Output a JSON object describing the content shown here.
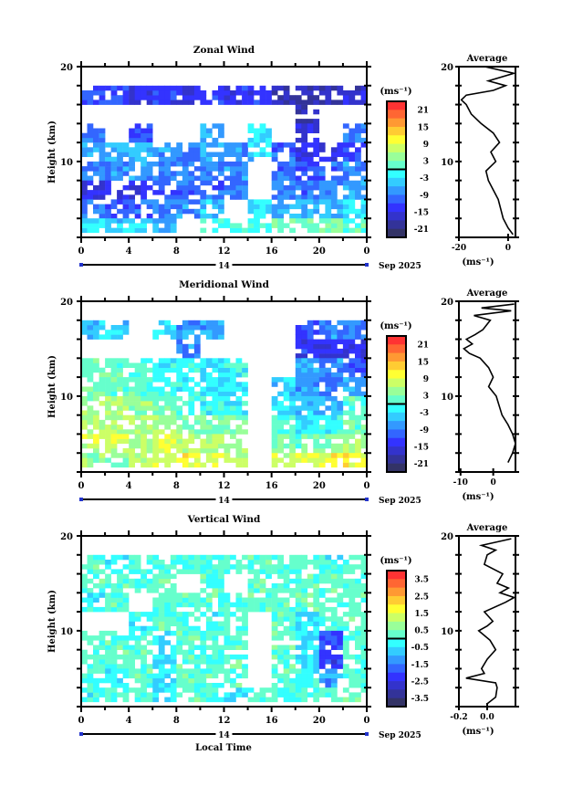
{
  "figure": {
    "day_label": "14",
    "month_label": "Sep 2025",
    "x_label": "Local Time"
  },
  "chart_data": [
    {
      "type": "heatmap",
      "title": "Zonal Wind",
      "ylabel": "Height (km)",
      "xlim": [
        0,
        24
      ],
      "ylim": [
        2,
        20
      ],
      "x_ticks": [
        "0",
        "4",
        "8",
        "12",
        "16",
        "20",
        "0"
      ],
      "y_ticks": [
        "10",
        "20"
      ],
      "time_step_hours": 2,
      "height_bins_lower_km_top_down": [
        18,
        16,
        14,
        12,
        10,
        8,
        6,
        4,
        2
      ],
      "values": [
        [
          null,
          null,
          null,
          null,
          null,
          null,
          null,
          null,
          null,
          null,
          null,
          null
        ],
        [
          -12,
          -12,
          -14,
          -13,
          -15,
          -13,
          -14,
          -14,
          -17,
          -18,
          -18,
          -16
        ],
        [
          null,
          null,
          null,
          null,
          null,
          null,
          null,
          null,
          null,
          -18,
          null,
          null
        ],
        [
          -9,
          null,
          -12,
          null,
          null,
          -6,
          null,
          -3,
          null,
          -15,
          null,
          -9
        ],
        [
          -7,
          -6,
          -5,
          -8,
          -9,
          -6,
          -7,
          -4,
          -10,
          -14,
          -15,
          -12
        ],
        [
          -9,
          -8,
          -7,
          -9,
          -9,
          -8,
          -8,
          null,
          -10,
          -12,
          -11,
          -8
        ],
        [
          -15,
          -16,
          -14,
          -12,
          -11,
          -10,
          -9,
          null,
          -9,
          -10,
          -8,
          -6
        ],
        [
          -10,
          -11,
          -10,
          -9,
          -8,
          -5,
          null,
          -3,
          -7,
          -6,
          -5,
          -4
        ],
        [
          -3,
          -4,
          -3,
          -5,
          null,
          -1,
          0,
          -1,
          2,
          3,
          3,
          1
        ]
      ],
      "colorbar": {
        "units": "(ms⁻¹)",
        "range": [
          -24,
          24
        ],
        "labels": [
          "21",
          "15",
          "9",
          "3",
          "-3",
          "-9",
          "-15",
          "-21"
        ]
      },
      "average": {
        "title": "Average",
        "xlabel": "(ms⁻¹)",
        "xlim": [
          -20,
          3
        ],
        "x_ticks": [
          {
            "value": -20,
            "label": "-20"
          },
          {
            "value": 0,
            "label": "0"
          }
        ],
        "y_ticks": [
          "10",
          "20"
        ],
        "heights": [
          20,
          19.3,
          18.5,
          18,
          17.5,
          17,
          16.5,
          16,
          15,
          14,
          13,
          12,
          11,
          10,
          9,
          8,
          7,
          6,
          5,
          4,
          3,
          2.3
        ],
        "values": [
          -9.5,
          2.4,
          -8,
          -1,
          -6,
          -17,
          -19,
          -17,
          -15,
          -11,
          -6,
          -3.5,
          -7,
          -5,
          -9,
          -8,
          -6,
          -4,
          -3,
          -2,
          0,
          2
        ]
      }
    },
    {
      "type": "heatmap",
      "title": "Meridional Wind",
      "ylabel": "Height (km)",
      "xlim": [
        0,
        24
      ],
      "ylim": [
        2,
        20
      ],
      "x_ticks": [
        "0",
        "4",
        "8",
        "12",
        "16",
        "20",
        "0"
      ],
      "y_ticks": [
        "10",
        "20"
      ],
      "time_step_hours": 2,
      "height_bins_lower_km_top_down": [
        18,
        16,
        14,
        12,
        10,
        8,
        6,
        4,
        2
      ],
      "values": [
        [
          null,
          null,
          null,
          null,
          null,
          null,
          null,
          null,
          null,
          null,
          null,
          null
        ],
        [
          -5,
          -4,
          null,
          -4,
          -8,
          -7,
          null,
          null,
          null,
          -12,
          -8,
          -9
        ],
        [
          null,
          null,
          null,
          null,
          -8,
          null,
          null,
          null,
          null,
          -14,
          -14,
          -15
        ],
        [
          1,
          2,
          0,
          -2,
          -2,
          -3,
          -1,
          null,
          null,
          -6,
          -8,
          -12
        ],
        [
          2,
          2,
          1,
          0,
          -1,
          -3,
          -2,
          null,
          -4,
          -8,
          -10,
          -6
        ],
        [
          5,
          6,
          4,
          3,
          0,
          -1,
          -2,
          null,
          -3,
          -5,
          -6,
          1
        ],
        [
          6,
          5,
          6,
          5,
          4,
          3,
          4,
          null,
          0,
          -2,
          -1,
          2
        ],
        [
          8,
          8,
          6,
          9,
          8,
          7,
          5,
          null,
          3,
          2,
          3,
          5
        ],
        [
          4,
          4,
          6,
          9,
          10,
          9,
          7,
          null,
          7,
          9,
          11,
          10
        ]
      ],
      "colorbar": {
        "units": "(ms⁻¹)",
        "range": [
          -24,
          24
        ],
        "labels": [
          "21",
          "15",
          "9",
          "3",
          "-3",
          "-9",
          "-15",
          "-21"
        ]
      },
      "average": {
        "title": "Average",
        "xlabel": "(ms⁻¹)",
        "xlim": [
          -10.5,
          6.8
        ],
        "x_ticks": [
          {
            "value": -10,
            "label": "-10"
          },
          {
            "value": 0,
            "label": "0"
          }
        ],
        "y_ticks": [
          "10",
          "20"
        ],
        "heights": [
          19.7,
          19.3,
          19,
          18.5,
          18,
          17,
          16.5,
          16,
          15.5,
          15,
          14.5,
          14,
          13,
          12,
          11,
          10,
          9,
          8,
          7,
          6,
          5,
          4,
          3
        ],
        "values": [
          6.4,
          -3.6,
          5.5,
          -5.9,
          -0.9,
          -3.2,
          -5.5,
          -8.2,
          -6.4,
          -9,
          -7.3,
          -4,
          -1.4,
          0,
          -1.4,
          0.9,
          1.8,
          2.7,
          4.5,
          5.9,
          6.8,
          5.9,
          4.5
        ]
      }
    },
    {
      "type": "heatmap",
      "title": "Vertical Wind",
      "ylabel": "Height (km)",
      "xlim": [
        0,
        24
      ],
      "ylim": [
        2,
        20
      ],
      "x_ticks": [
        "0",
        "4",
        "8",
        "12",
        "16",
        "20",
        "0"
      ],
      "y_ticks": [
        "10",
        "20"
      ],
      "time_step_hours": 2,
      "height_bins_lower_km_top_down": [
        18,
        16,
        14,
        12,
        10,
        8,
        6,
        4,
        2
      ],
      "values": [
        [
          null,
          null,
          null,
          null,
          null,
          null,
          null,
          null,
          null,
          null,
          null,
          null
        ],
        [
          0.2,
          -0.3,
          0,
          0.1,
          0.2,
          0.1,
          0,
          0.2,
          0.1,
          0.2,
          -0.2,
          0.1
        ],
        [
          0.2,
          0.2,
          0.1,
          0.2,
          null,
          0.2,
          null,
          0.2,
          0.1,
          0.2,
          0.2,
          0.1
        ],
        [
          -0.3,
          0.2,
          null,
          0.1,
          0.2,
          0.2,
          0.1,
          0.2,
          0.2,
          0.3,
          0.1,
          0.2
        ],
        [
          null,
          null,
          -0.2,
          0.2,
          0.1,
          -0.2,
          0.1,
          null,
          0.2,
          -0.5,
          0.1,
          0.2
        ],
        [
          0.2,
          0.2,
          0.1,
          -0.3,
          0.2,
          0.1,
          0.2,
          null,
          0.4,
          -0.6,
          -2,
          0.1
        ],
        [
          0.1,
          0.2,
          0.2,
          -0.4,
          0.2,
          0.1,
          0.2,
          null,
          0.2,
          -0.6,
          -2.2,
          0.1
        ],
        [
          0.1,
          -0.3,
          0.2,
          -0.4,
          0.3,
          0.2,
          0.2,
          null,
          0.2,
          -0.3,
          -1.2,
          0.1
        ],
        [
          -0.2,
          0.1,
          0.2,
          -0.4,
          0.2,
          0.1,
          -0.5,
          0.2,
          0.1,
          0.2,
          0.1,
          0.2
        ]
      ],
      "colorbar": {
        "units": "(ms⁻¹)",
        "range": [
          -4,
          4
        ],
        "labels": [
          "3.5",
          "2.5",
          "1.5",
          "0.5",
          "-0.5",
          "-1.5",
          "-2.5",
          "-3.5"
        ]
      },
      "average": {
        "title": "Average",
        "xlabel": "(ms⁻¹)",
        "xlim": [
          -0.2,
          0.2
        ],
        "x_ticks": [
          {
            "value": -0.2,
            "label": "-0.2"
          },
          {
            "value": 0,
            "label": "0.0"
          }
        ],
        "y_ticks": [
          "10",
          "20"
        ],
        "heights": [
          19.7,
          19,
          18.5,
          18,
          17,
          16,
          15,
          14.5,
          14,
          13.5,
          13,
          12,
          11,
          10.5,
          10,
          9,
          8,
          7,
          6,
          5.5,
          5,
          4.5,
          4,
          3,
          2.3
        ],
        "values": [
          0.17,
          -0.04,
          0.06,
          0,
          -0.02,
          0.11,
          0.07,
          0.15,
          0.09,
          0.19,
          0.13,
          -0.02,
          0.04,
          0,
          -0.06,
          0.02,
          0.06,
          0,
          -0.04,
          -0.02,
          -0.15,
          0.06,
          0.07,
          0.06,
          0
        ]
      }
    }
  ],
  "colors": {
    "scale_top_down": [
      "#ff3333",
      "#ff6633",
      "#ff9933",
      "#ffcc33",
      "#ffff33",
      "#ccff66",
      "#99ff99",
      "#66ffcc",
      "#33ffff",
      "#33ccff",
      "#3399ff",
      "#3366ff",
      "#3333ff",
      "#3333cc",
      "#333399",
      "#333366"
    ],
    "day_marker": "#2233cc"
  }
}
